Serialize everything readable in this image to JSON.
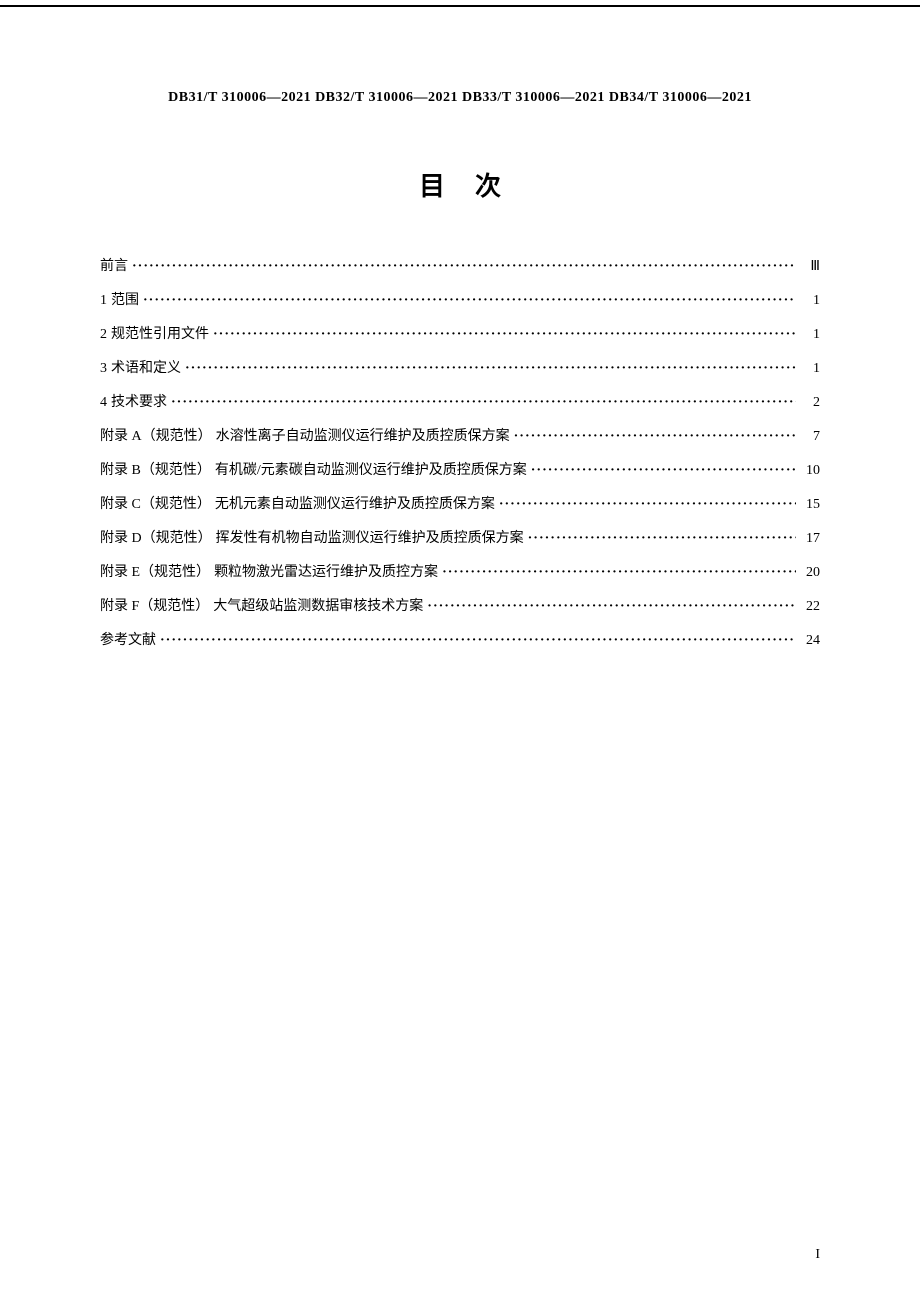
{
  "header": {
    "standards": "DB31/T 310006—2021   DB32/T 310006—2021   DB33/T 310006—2021   DB34/T 310006—2021"
  },
  "title": "目次",
  "toc": [
    {
      "prefix": "",
      "label": "前言",
      "page": "Ⅲ"
    },
    {
      "prefix": "1",
      "label": "范围",
      "page": "1"
    },
    {
      "prefix": "2",
      "label": "规范性引用文件",
      "page": "1"
    },
    {
      "prefix": "3",
      "label": "术语和定义",
      "page": "1"
    },
    {
      "prefix": "4",
      "label": "技术要求",
      "page": "2"
    },
    {
      "prefix": "附录 A（规范性）",
      "label": "水溶性离子自动监测仪运行维护及质控质保方案",
      "page": "7"
    },
    {
      "prefix": "附录 B（规范性）",
      "label": "有机碳/元素碳自动监测仪运行维护及质控质保方案",
      "page": "10"
    },
    {
      "prefix": "附录 C（规范性）",
      "label": "无机元素自动监测仪运行维护及质控质保方案",
      "page": "15"
    },
    {
      "prefix": "附录 D（规范性）",
      "label": "挥发性有机物自动监测仪运行维护及质控质保方案",
      "page": "17"
    },
    {
      "prefix": "附录 E（规范性）",
      "label": "颗粒物激光雷达运行维护及质控方案",
      "page": "20"
    },
    {
      "prefix": "附录 F（规范性）",
      "label": "大气超级站监测数据审核技术方案",
      "page": "22"
    },
    {
      "prefix": "",
      "label": "参考文献",
      "page": "24"
    }
  ],
  "pageNumber": "I"
}
